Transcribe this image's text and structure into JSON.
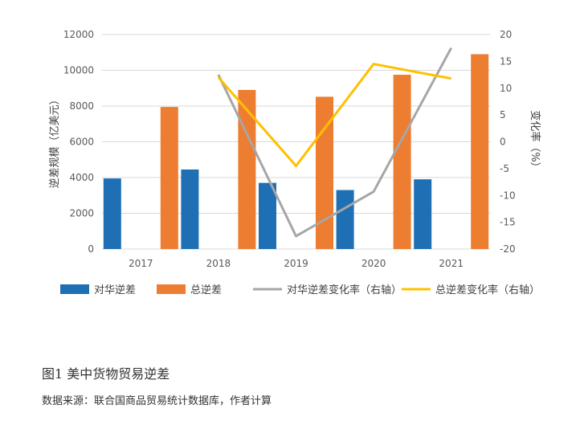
{
  "chart_data": {
    "type": "bar",
    "categories": [
      "2017",
      "2018",
      "2019",
      "2020",
      "2021"
    ],
    "series": [
      {
        "name": "对华逆差",
        "type": "bar",
        "axis": "left",
        "color": "#1f6fb5",
        "values": [
          3950,
          4450,
          3700,
          3300,
          3900
        ]
      },
      {
        "name": "总逆差",
        "type": "bar",
        "axis": "left",
        "color": "#ed7d31",
        "values": [
          7950,
          8900,
          8520,
          9750,
          10900
        ]
      },
      {
        "name": "对华逆差变化率（右轴）",
        "type": "line",
        "axis": "right",
        "color": "#a6a6a6",
        "values": [
          null,
          12.5,
          -17.6,
          -9.3,
          17.5
        ]
      },
      {
        "name": "总逆差变化率（右轴）",
        "type": "line",
        "axis": "right",
        "color": "#ffc000",
        "values": [
          null,
          12.0,
          -4.5,
          14.5,
          11.8
        ]
      }
    ],
    "ylabel_left": "逆差规模（亿美元）",
    "ylabel_right": "变化率（%）",
    "ylim_left": [
      0,
      12000
    ],
    "ylim_right": [
      -20,
      20
    ],
    "yticks_left": [
      "0",
      "2000",
      "4000",
      "6000",
      "8000",
      "10000",
      "12000"
    ],
    "yticks_right": [
      "-20",
      "-15",
      "-10",
      "-5",
      "0",
      "5",
      "10",
      "15",
      "20"
    ],
    "grid": true,
    "legend_position": "bottom"
  },
  "caption": "图1  美中货物贸易逆差",
  "source": "数据来源：联合国商品贸易统计数据库，作者计算"
}
